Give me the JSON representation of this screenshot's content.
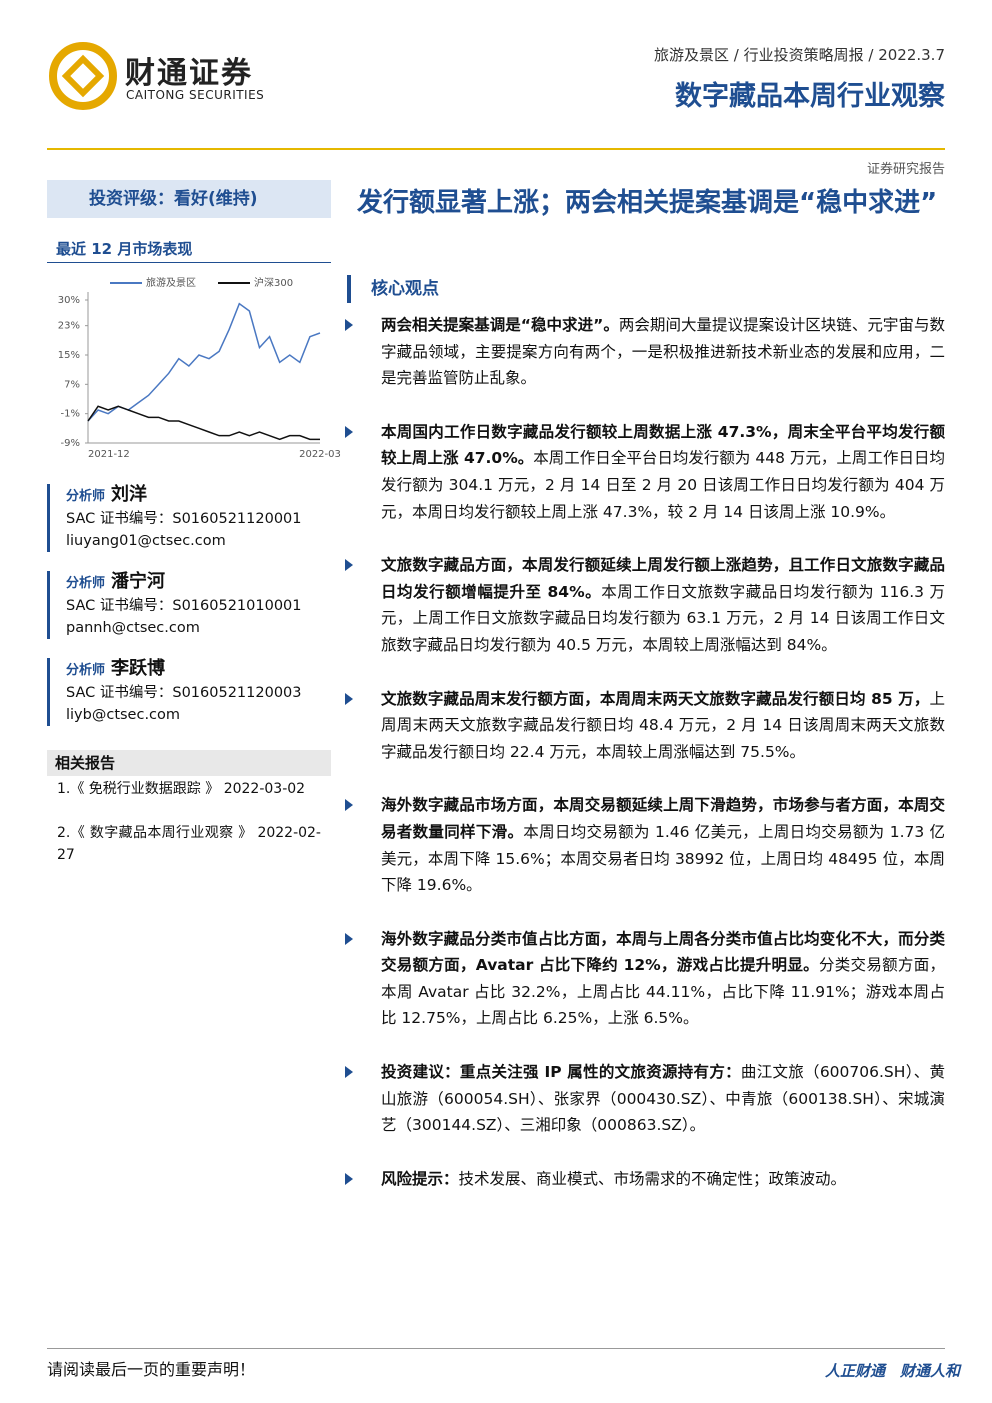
{
  "header": {
    "logo_cn": "财通证券",
    "logo_en": "CAITONG SECURITIES",
    "breadcrumb": "旅游及景区 / 行业投资策略周报 / 2022.3.7",
    "title": "数字藏品本周行业观察",
    "report_type": "证券研究报告"
  },
  "sidebar": {
    "rating": "投资评级：看好(维持)",
    "perf_title": "最近 12 月市场表现",
    "analysts": [
      {
        "label": "分析师",
        "name": "刘洋",
        "sac": "SAC 证书编号：S0160521120001",
        "email": "liuyang01@ctsec.com"
      },
      {
        "label": "分析师",
        "name": "潘宁河",
        "sac": "SAC 证书编号：S0160521010001",
        "email": "pannh@ctsec.com"
      },
      {
        "label": "分析师",
        "name": "李跃博",
        "sac": "SAC 证书编号：S0160521120003",
        "email": "liyb@ctsec.com"
      }
    ],
    "related_title": "相关报告",
    "related": [
      "1.《 免税行业数据跟踪 》 2022-03-02",
      "2.《 数字藏品本周行业观察 》 2022-02-27"
    ]
  },
  "chart_data": {
    "type": "line",
    "categories": [
      "2021-12",
      null,
      null,
      null,
      null,
      null,
      null,
      null,
      null,
      null,
      null,
      null,
      null,
      null,
      null,
      null,
      null,
      null,
      null,
      null,
      null,
      null,
      null,
      "2022-03"
    ],
    "series": [
      {
        "name": "旅游及景区",
        "color": "#4a78c2",
        "values": [
          -3,
          0,
          -1,
          1,
          0,
          2,
          4,
          7,
          10,
          14,
          12,
          15,
          14,
          16,
          22,
          29,
          27,
          17,
          20,
          13,
          15,
          13,
          20,
          21
        ]
      },
      {
        "name": "沪深300",
        "color": "#111111",
        "values": [
          -3,
          1,
          0,
          1,
          0,
          -1,
          -2,
          -2,
          -3,
          -3,
          -4,
          -5,
          -6,
          -7,
          -7,
          -6,
          -7,
          -6,
          -7,
          -8,
          -7,
          -7,
          -8,
          -8
        ]
      }
    ],
    "ylim": [
      -9,
      30
    ],
    "yticks": [
      {
        "value": 30,
        "label": "30%"
      },
      {
        "value": 23,
        "label": "23%"
      },
      {
        "value": 15,
        "label": "15%"
      },
      {
        "value": 7,
        "label": "7%"
      },
      {
        "value": -1,
        "label": "-1%"
      },
      {
        "value": -9,
        "label": "-9%"
      }
    ]
  },
  "main": {
    "title": "发行额显著上涨；两会相关提案基调是“稳中求进”",
    "section": "核心观点",
    "bullets": [
      {
        "bold": "两会相关提案基调是“稳中求进”。",
        "text": "两会期间大量提议提案设计区块链、元宇宙与数字藏品领域，主要提案方向有两个，一是积极推进新技术新业态的发展和应用，二是完善监管防止乱象。"
      },
      {
        "bold": "本周国内工作日数字藏品发行额较上周数据上涨 47.3%，周末全平台平均发行额较上周上涨 47.0%。",
        "text": "本周工作日全平台日均发行额为 448 万元，上周工作日日均发行额为 304.1 万元，2 月 14 日至 2 月 20 日该周工作日日均发行额为 404 万元，本周日均发行额较上周上涨 47.3%，较 2 月 14 日该周上涨 10.9%。"
      },
      {
        "bold": "文旅数字藏品方面，本周发行额延续上周发行额上涨趋势，且工作日文旅数字藏品日均发行额增幅提升至 84%。",
        "text": "本周工作日文旅数字藏品日均发行额为 116.3 万元，上周工作日文旅数字藏品日均发行额为 63.1 万元，2 月 14 日该周工作日文旅数字藏品日均发行额为 40.5 万元，本周较上周涨幅达到 84%。"
      },
      {
        "bold": "文旅数字藏品周末发行额方面，本周周末两天文旅数字藏品发行额日均 85 万，",
        "text": "上周周末两天文旅数字藏品发行额日均 48.4 万元，2 月 14 日该周周末两天文旅数字藏品发行额日均 22.4 万元，本周较上周涨幅达到 75.5%。"
      },
      {
        "bold": "海外数字藏品市场方面，本周交易额延续上周下滑趋势，市场参与者方面，本周交易者数量同样下滑。",
        "text": "本周日均交易额为 1.46 亿美元，上周日均交易额为 1.73 亿美元，本周下降 15.6%；本周交易者日均 38992 位，上周日均 48495 位，本周下降 19.6%。"
      },
      {
        "bold": "海外数字藏品分类市值占比方面，本周与上周各分类市值占比均变化不大，而分类交易额方面，Avatar 占比下降约 12%，游戏占比提升明显。",
        "text": "分类交易额方面，本周 Avatar 占比 32.2%，上周占比 44.11%，占比下降 11.91%；游戏本周占比 12.75%，上周占比 6.25%，上涨 6.5%。"
      },
      {
        "bold": "投资建议：重点关注强 IP 属性的文旅资源持有方：",
        "text": "曲江文旅（600706.SH）、黄山旅游（600054.SH）、张家界（000430.SZ）、中青旅（600138.SH）、宋城演艺（300144.SZ）、三湘印象（000863.SZ）。"
      },
      {
        "bold": "风险提示：",
        "text": "技术发展、商业模式、市场需求的不确定性；政策波动。"
      }
    ]
  },
  "footer": {
    "notice": "请阅读最后一页的重要声明！",
    "slogan": "人正财通　财通人和"
  }
}
